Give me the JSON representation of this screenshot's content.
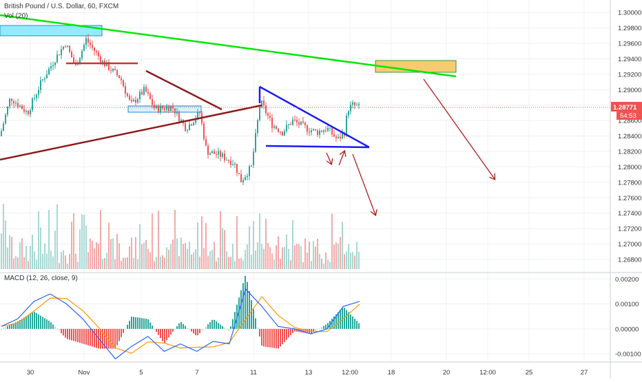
{
  "header": {
    "symbol_title": "British Pound / U.S. Dollar, 60, FXCM",
    "vol_label": "Vol (20)",
    "macd_label": "MACD (12, 26, close, 9)"
  },
  "price_scale": {
    "ticks": [
      "1.30000",
      "1.29800",
      "1.29600",
      "1.29400",
      "1.29200",
      "1.29000",
      "1.28800",
      "1.28600",
      "1.28400",
      "1.28200",
      "1.28000",
      "1.27800",
      "1.27600",
      "1.27400",
      "1.27200",
      "1.27000",
      "1.26800"
    ],
    "last_price": "1.28771",
    "countdown": "54:53",
    "last_price_color": "#ef5350"
  },
  "macd_scale": {
    "ticks": [
      "0.00200",
      "0.00100",
      "0.00000",
      "-0.00100"
    ]
  },
  "time_axis": {
    "labels": [
      "30",
      "Nov",
      "5",
      "7",
      "11",
      "13",
      "12:00",
      "18",
      "20",
      "12:00",
      "25",
      "27"
    ]
  },
  "colors": {
    "up_candle": "#26a69a",
    "down_candle": "#ef5350",
    "resistance_green": "#00e600",
    "trend_darkred": "#8b1a1a",
    "support_red": "#d32f2f",
    "triangle_blue": "#1a1aff",
    "zone_cyan": "#66e3ff",
    "zone_orange": "#f5b942",
    "macd_line": "#2962ff",
    "signal_line": "#ff9800"
  },
  "chart_data": {
    "type": "line",
    "title": "British Pound / U.S. Dollar, 60, FXCM",
    "series": [
      {
        "name": "price_close",
        "x_labels_approx": [
          "30",
          "Nov",
          "5",
          "7",
          "11",
          "13",
          "12:00"
        ],
        "values": [
          1.2845,
          1.2862,
          1.2905,
          1.295,
          1.2965,
          1.294,
          1.2925,
          1.288,
          1.287,
          1.288,
          1.286,
          1.285,
          1.281,
          1.279,
          1.278,
          1.288,
          1.286,
          1.285,
          1.284,
          1.283,
          1.287,
          1.288,
          1.2877
        ]
      },
      {
        "name": "MACD",
        "values": [
          0.0001,
          0.0004,
          0.0011,
          0.0014,
          0.001,
          0.0004,
          -0.0004,
          -0.0012,
          -0.0007,
          -0.0003,
          -0.0009,
          -0.0006,
          -0.0009,
          -0.0005,
          -0.0006,
          0.0016,
          0.0009,
          0.0001,
          0.0,
          -0.0002,
          0.0,
          0.0009,
          0.0011
        ]
      }
    ],
    "ylim": [
      1.267,
      1.301
    ],
    "macd_ylim": [
      -0.0013,
      0.0022
    ],
    "grid": true
  }
}
